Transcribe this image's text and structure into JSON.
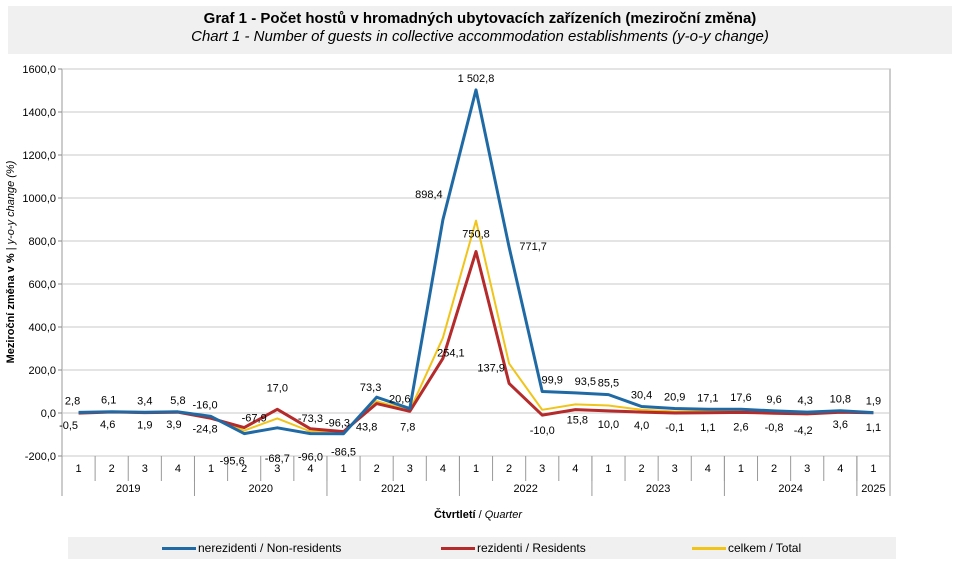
{
  "chart_data": {
    "type": "line",
    "title": "Graf 1 - Počet hostů v hromadných ubytovacích zařízeních (meziroční změna)",
    "subtitle": "Chart 1 - Number of guests in collective accommodation establishments (y-o-y change)",
    "ylabel_cz": "Meziroční změna v %",
    "ylabel_en": "y-o-y change (%)",
    "xlabel_cz": "Čtvrtletí",
    "xlabel_en": "Quarter",
    "ylim": [
      -200,
      1600
    ],
    "yticks": [
      "-200,0",
      "0,0",
      "200,0",
      "400,0",
      "600,0",
      "800,0",
      "1000,0",
      "1200,0",
      "1400,0",
      "1600,0"
    ],
    "categories": [
      "1",
      "2",
      "3",
      "4",
      "1",
      "2",
      "3",
      "4",
      "1",
      "2",
      "3",
      "4",
      "1",
      "2",
      "3",
      "4",
      "1",
      "2",
      "3",
      "4",
      "1",
      "2",
      "3",
      "4",
      "1"
    ],
    "years": [
      "2019",
      "2020",
      "2021",
      "2022",
      "2023",
      "2024",
      "2025"
    ],
    "year_spans": [
      4,
      4,
      4,
      4,
      4,
      4,
      1
    ],
    "grid": true,
    "legend_position": "bottom",
    "series": [
      {
        "key": "nonres",
        "name": "nerezidenti / Non-residents",
        "color": "#1f6aa5",
        "values": [
          2.8,
          6.1,
          3.4,
          5.8,
          -16.0,
          -95.6,
          -68.7,
          -96.0,
          -96.3,
          73.3,
          20.6,
          898.4,
          1502.8,
          771.7,
          99.9,
          93.5,
          85.5,
          30.4,
          20.9,
          17.1,
          17.6,
          9.6,
          4.3,
          10.8,
          1.9
        ],
        "labels": [
          "2,8",
          "6,1",
          "3,4",
          "5,8",
          "-16,0",
          "-95,6",
          "-68,7",
          "-96,0",
          "-96,3",
          "73,3",
          "20,6",
          "898,4",
          "1 502,8",
          "771,7",
          "99,9",
          "93,5",
          "85,5",
          "30,4",
          "20,9",
          "17,1",
          "17,6",
          "9,6",
          "4,3",
          "10,8",
          "1,9"
        ]
      },
      {
        "key": "res",
        "name": "rezidenti / Residents",
        "color": "#b52a2a",
        "values": [
          -0.5,
          4.6,
          1.9,
          3.9,
          -24.8,
          -67.9,
          17.0,
          -73.3,
          -86.5,
          43.8,
          7.8,
          254.1,
          750.8,
          137.9,
          -10.0,
          15.8,
          10.0,
          4.0,
          -0.1,
          1.1,
          2.6,
          -0.8,
          -4.2,
          3.6,
          1.1
        ],
        "labels": [
          "-0,5",
          "4,6",
          "1,9",
          "3,9",
          "-24,8",
          "-67,9",
          "17,0",
          "-73,3",
          "-86,5",
          "43,8",
          "7,8",
          "254,1",
          "750,8",
          "137,9",
          "-10,0",
          "15,8",
          "10,0",
          "4,0",
          "-0,1",
          "1,1",
          "2,6",
          "-0,8",
          "-4,2",
          "3,6",
          "1,1"
        ]
      },
      {
        "key": "total",
        "name": "celkem / Total",
        "color": "#f0c419",
        "values": [
          1.0,
          5.3,
          2.6,
          4.8,
          -20.0,
          -82.0,
          -25.0,
          -86.0,
          -92.0,
          55.0,
          12.0,
          350.0,
          895.0,
          230.0,
          15.0,
          40.0,
          35.0,
          15.0,
          7.0,
          7.0,
          8.0,
          3.5,
          -0.5,
          6.5,
          1.4
        ]
      }
    ]
  }
}
